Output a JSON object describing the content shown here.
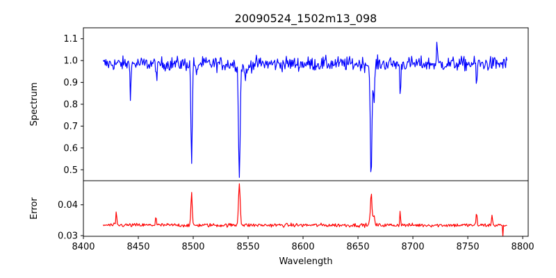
{
  "chart_data": {
    "type": "line",
    "title": "20090524_1502m13_098",
    "xlabel": "Wavelength",
    "xlim": [
      8400,
      8805
    ],
    "xticks": [
      8400,
      8450,
      8500,
      8550,
      8600,
      8650,
      8700,
      8750,
      8800
    ],
    "data_range": [
      8418,
      8786
    ],
    "panels": [
      {
        "name": "spectrum",
        "ylabel": "Spectrum",
        "ylim": [
          0.45,
          1.15
        ],
        "yticks": [
          0.5,
          0.6,
          0.7,
          0.8,
          0.9,
          1.0,
          1.1
        ],
        "ytick_labels": [
          "0.5",
          "0.6",
          "0.7",
          "0.8",
          "0.9",
          "1.0",
          "1.1"
        ],
        "color": "#0000ff",
        "baseline": 0.985,
        "noise": 0.032,
        "features": [
          {
            "x": 8443,
            "depth": 0.14,
            "width": 0.6
          },
          {
            "x": 8467,
            "depth": 0.09,
            "width": 0.6
          },
          {
            "x": 8498.5,
            "depth": 0.46,
            "width": 0.85
          },
          {
            "x": 8503,
            "depth": 0.07,
            "width": 0.8
          },
          {
            "x": 8542,
            "depth": 0.5,
            "width": 1.1
          },
          {
            "x": 8548,
            "depth": 0.05,
            "width": 2.5
          },
          {
            "x": 8662,
            "depth": 0.5,
            "width": 1.1
          },
          {
            "x": 8664.5,
            "depth": 0.17,
            "width": 1.0
          },
          {
            "x": 8688.5,
            "depth": 0.18,
            "width": 0.5
          },
          {
            "x": 8758,
            "depth": 0.1,
            "width": 0.6
          }
        ],
        "spikes": [
          {
            "x": 8722,
            "height": 0.13,
            "width": 0.4
          }
        ]
      },
      {
        "name": "error",
        "ylabel": "Error",
        "ylim": [
          0.0298,
          0.0478
        ],
        "yticks": [
          0.03,
          0.04
        ],
        "ytick_labels": [
          "0.03",
          "0.04"
        ],
        "color": "#ff0000",
        "baseline": 0.0334,
        "noise": 0.0006,
        "features": [
          {
            "x": 8430,
            "height": 0.005,
            "width": 0.5
          },
          {
            "x": 8466,
            "height": 0.003,
            "width": 0.6
          },
          {
            "x": 8498.5,
            "height": 0.01,
            "width": 0.85
          },
          {
            "x": 8542,
            "height": 0.0135,
            "width": 1.1
          },
          {
            "x": 8662,
            "height": 0.01,
            "width": 1.1
          },
          {
            "x": 8664.5,
            "height": 0.003,
            "width": 1.0
          },
          {
            "x": 8688.5,
            "height": 0.005,
            "width": 0.5
          },
          {
            "x": 8758,
            "height": 0.004,
            "width": 0.6
          },
          {
            "x": 8772,
            "height": 0.0035,
            "width": 0.6
          }
        ],
        "dips": [
          {
            "x": 8782,
            "depth": 0.0035,
            "width": 0.4
          }
        ]
      }
    ]
  }
}
